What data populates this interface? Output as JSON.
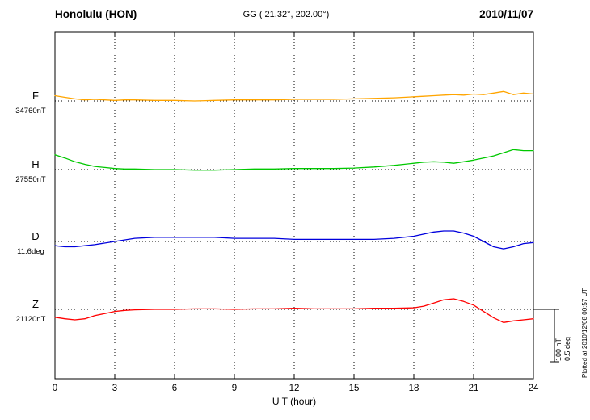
{
  "header": {
    "station": "Honolulu (HON)",
    "coords": "GG ( 21.32°, 202.00°)",
    "date": "2010/11/07"
  },
  "chart_data": {
    "type": "line",
    "xlabel": "U T (hour)",
    "x_range": [
      0,
      24
    ],
    "x_ticks": [
      0,
      3,
      6,
      9,
      12,
      15,
      18,
      21,
      24
    ],
    "grid": "dotted vertical lines at each 3-hour tick; dotted horizontal baseline per trace",
    "legend_position": "left margin, one colored label per trace",
    "scale_bar": {
      "nt_label": "100 nT",
      "deg_label": "0.5 deg",
      "nT": 100,
      "deg": 0.5
    },
    "plotted_at": "Plotted at 2010/12/08 00:57 UT",
    "series": [
      {
        "name": "F",
        "baseline_label": "34760nT",
        "baseline_value": 34760,
        "unit": "nT",
        "color": "#FFA500",
        "x": [
          0,
          0.5,
          1,
          1.5,
          2,
          2.5,
          3,
          3.5,
          4,
          5,
          6,
          7,
          8,
          9,
          10,
          11,
          12,
          13,
          14,
          15,
          16,
          17,
          17.5,
          18,
          18.5,
          19,
          19.5,
          20,
          20.5,
          21,
          21.5,
          22,
          22.5,
          23,
          23.5,
          24
        ],
        "offset": [
          10,
          7,
          4,
          2,
          3,
          2,
          1,
          2,
          2,
          1,
          1,
          0,
          1,
          2,
          2,
          2,
          3,
          3,
          3,
          4,
          5,
          6,
          7,
          8,
          9,
          10,
          11,
          12,
          11,
          13,
          12,
          15,
          18,
          12,
          15,
          13
        ]
      },
      {
        "name": "H",
        "baseline_label": "27550nT",
        "baseline_value": 27550,
        "unit": "nT",
        "color": "#00C800",
        "x": [
          0,
          0.5,
          1,
          1.5,
          2,
          2.5,
          3,
          3.5,
          4,
          5,
          6,
          7,
          8,
          9,
          10,
          11,
          12,
          13,
          14,
          15,
          16,
          17,
          17.5,
          18,
          18.5,
          19,
          19.5,
          20,
          20.5,
          21,
          21.5,
          22,
          22.5,
          23,
          23.5,
          24
        ],
        "offset": [
          28,
          22,
          15,
          10,
          6,
          4,
          2,
          1,
          1,
          0,
          0,
          -1,
          -1,
          0,
          1,
          1,
          2,
          2,
          2,
          3,
          5,
          8,
          10,
          12,
          14,
          15,
          14,
          12,
          15,
          18,
          22,
          26,
          32,
          38,
          36,
          36
        ]
      },
      {
        "name": "D",
        "baseline_label": "11.6deg",
        "baseline_value": 11.6,
        "unit": "deg",
        "color": "#0000DD",
        "x": [
          0,
          0.5,
          1,
          1.5,
          2,
          3,
          4,
          5,
          6,
          7,
          8,
          9,
          10,
          11,
          12,
          13,
          14,
          15,
          16,
          17,
          18,
          18.5,
          19,
          19.5,
          20,
          20.5,
          21,
          21.5,
          22,
          22.5,
          23,
          23.5,
          24
        ],
        "offset": [
          -0.04,
          -0.05,
          -0.05,
          -0.04,
          -0.03,
          0,
          0.03,
          0.04,
          0.04,
          0.04,
          0.04,
          0.03,
          0.03,
          0.03,
          0.02,
          0.02,
          0.02,
          0.02,
          0.02,
          0.03,
          0.05,
          0.07,
          0.09,
          0.1,
          0.1,
          0.08,
          0.05,
          0.0,
          -0.05,
          -0.07,
          -0.05,
          -0.02,
          -0.01
        ]
      },
      {
        "name": "Z",
        "baseline_label": "21120nT",
        "baseline_value": 21120,
        "unit": "nT",
        "color": "#FF0000",
        "x": [
          0,
          0.5,
          1,
          1.5,
          2,
          2.5,
          3,
          3.5,
          4,
          5,
          6,
          7,
          8,
          9,
          10,
          11,
          12,
          13,
          14,
          15,
          16,
          17,
          18,
          18.5,
          19,
          19.5,
          20,
          20.5,
          21,
          21.5,
          22,
          22.5,
          23,
          23.5,
          24
        ],
        "offset": [
          -15,
          -18,
          -20,
          -18,
          -12,
          -8,
          -4,
          -2,
          -1,
          0,
          0,
          1,
          1,
          0,
          1,
          1,
          2,
          1,
          1,
          1,
          2,
          2,
          3,
          6,
          12,
          18,
          20,
          15,
          8,
          -4,
          -16,
          -25,
          -22,
          -20,
          -18
        ]
      }
    ]
  }
}
